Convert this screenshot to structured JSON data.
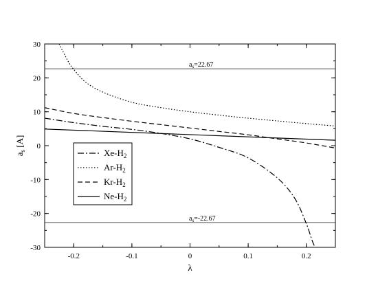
{
  "chart_data": {
    "type": "line",
    "xlabel": "λ",
    "ylabel": "a",
    "ylabel_sub": "s",
    "ylabel_unit": " [A]",
    "xlim": [
      -0.25,
      0.25
    ],
    "ylim": [
      -30,
      30
    ],
    "x_ticks": [
      -0.2,
      -0.1,
      0,
      0.1,
      0.2
    ],
    "x_tick_labels": [
      "-0.2",
      "-0.1",
      "0",
      "0.1",
      "0.2"
    ],
    "y_ticks": [
      -30,
      -20,
      -10,
      0,
      10,
      20,
      30
    ],
    "y_tick_labels": [
      "-30",
      "-20",
      "-10",
      "0",
      "10",
      "20",
      "30"
    ],
    "grid": false,
    "legend_position": "middle-left",
    "reference_lines": [
      {
        "y": 22.67,
        "label": "a",
        "label_sub": "s",
        "label_rest": "=22.67"
      },
      {
        "y": -22.67,
        "label": "a",
        "label_sub": "s",
        "label_rest": "=-22.67"
      }
    ],
    "series": [
      {
        "name": "Xe-H",
        "name_sub": "2",
        "style": "dashdot",
        "x": [
          -0.25,
          -0.2,
          -0.15,
          -0.1,
          -0.05,
          0,
          0.05,
          0.1,
          0.15,
          0.18,
          0.2,
          0.21,
          0.215
        ],
        "y": [
          8.1,
          6.8,
          5.7,
          4.8,
          3.6,
          2.0,
          -0.5,
          -3.6,
          -9.5,
          -15.5,
          -23.0,
          -28.0,
          -30.0
        ]
      },
      {
        "name": "Ar-H",
        "name_sub": "2",
        "style": "dotted",
        "x": [
          -0.225,
          -0.21,
          -0.2,
          -0.18,
          -0.15,
          -0.1,
          -0.05,
          0,
          0.05,
          0.1,
          0.15,
          0.2,
          0.25
        ],
        "y": [
          30.0,
          25.0,
          22.5,
          18.8,
          15.8,
          12.8,
          11.2,
          10.0,
          9.0,
          8.1,
          7.3,
          6.5,
          5.8
        ]
      },
      {
        "name": "Kr-H",
        "name_sub": "2",
        "style": "dashed",
        "x": [
          -0.25,
          -0.2,
          -0.15,
          -0.1,
          -0.05,
          0,
          0.05,
          0.1,
          0.15,
          0.2,
          0.25
        ],
        "y": [
          11.2,
          9.5,
          8.3,
          7.2,
          6.2,
          5.2,
          4.2,
          3.2,
          2.0,
          0.8,
          -0.7
        ]
      },
      {
        "name": "Ne-H",
        "name_sub": "2",
        "style": "solid",
        "x": [
          -0.25,
          0.25
        ],
        "y": [
          4.9,
          1.6
        ]
      }
    ]
  }
}
